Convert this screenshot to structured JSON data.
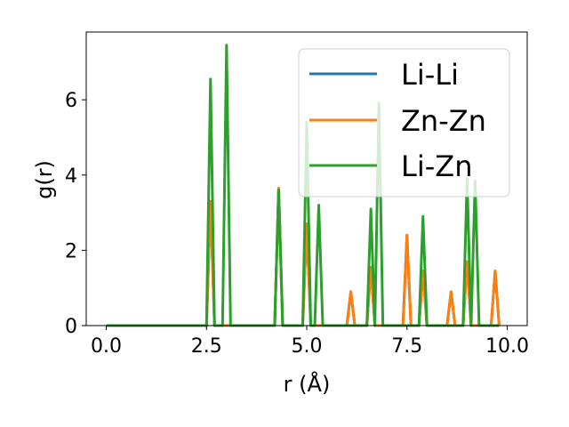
{
  "chart_data": {
    "type": "line",
    "title": "",
    "xlabel": "r (Å)",
    "ylabel": "g(r)",
    "xlim": [
      -0.5,
      10.5
    ],
    "ylim": [
      0,
      7.8
    ],
    "xticks": [
      0.0,
      2.5,
      5.0,
      7.5,
      10.0
    ],
    "xtick_labels": [
      "0.0",
      "2.5",
      "5.0",
      "7.5",
      "10.0"
    ],
    "yticks": [
      0,
      2,
      4,
      6
    ],
    "ytick_labels": [
      "0",
      "2",
      "4",
      "6"
    ],
    "grid": false,
    "legend_position": "top-right",
    "series": [
      {
        "name": "Li-Li",
        "color": "#1f77b4",
        "peaks": [
          [
            2.6,
            3.3
          ],
          [
            4.3,
            3.65
          ],
          [
            5.0,
            2.7
          ],
          [
            6.1,
            0.9
          ],
          [
            6.6,
            1.55
          ],
          [
            7.5,
            2.4
          ],
          [
            7.9,
            1.45
          ],
          [
            8.6,
            0.9
          ],
          [
            9.0,
            1.7
          ],
          [
            9.7,
            1.45
          ]
        ]
      },
      {
        "name": "Zn-Zn",
        "color": "#ff7f0e",
        "peaks": [
          [
            2.6,
            3.3
          ],
          [
            4.3,
            3.65
          ],
          [
            5.0,
            2.7
          ],
          [
            6.1,
            0.9
          ],
          [
            6.6,
            1.55
          ],
          [
            7.5,
            2.4
          ],
          [
            7.9,
            1.45
          ],
          [
            8.6,
            0.9
          ],
          [
            9.0,
            1.7
          ],
          [
            9.7,
            1.45
          ]
        ]
      },
      {
        "name": "Li-Zn",
        "color": "#2ca02c",
        "peaks": [
          [
            2.6,
            6.55
          ],
          [
            3.0,
            7.45
          ],
          [
            4.3,
            3.6
          ],
          [
            5.0,
            5.4
          ],
          [
            5.3,
            3.2
          ],
          [
            6.6,
            3.1
          ],
          [
            6.8,
            5.9
          ],
          [
            7.9,
            2.9
          ],
          [
            9.0,
            3.9
          ],
          [
            9.2,
            3.85
          ]
        ]
      }
    ],
    "r_range": [
      0.0,
      9.8
    ],
    "peak_half_width": 0.1
  }
}
